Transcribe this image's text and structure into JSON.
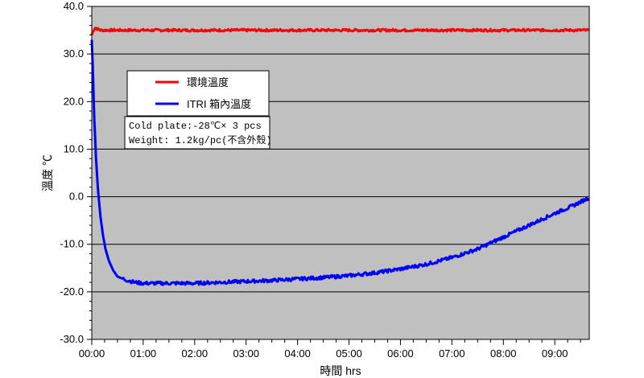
{
  "chart_data": {
    "type": "line",
    "title": "",
    "xlabel": "時間 hrs",
    "ylabel": "溫度 ℃",
    "ylim": [
      -30,
      40
    ],
    "xlim_hours": [
      0,
      9.67
    ],
    "grid": "horizontal",
    "background": "#c0c0c0",
    "x_ticks": [
      "00:00",
      "01:00",
      "02:00",
      "03:00",
      "04:00",
      "05:00",
      "06:00",
      "07:00",
      "08:00",
      "09:00"
    ],
    "y_ticks": [
      "40.0",
      "30.0",
      "20.0",
      "10.0",
      "0.0",
      "-10.0",
      "-20.0",
      "-30.0"
    ],
    "legend": {
      "placement": "upper-left"
    },
    "series": [
      {
        "name": "環境溫度",
        "color": "#ff0000",
        "x": [
          "00:00",
          "00:02",
          "00:04",
          "00:06",
          "00:10",
          "00:20",
          "00:30",
          "01:00",
          "02:00",
          "03:00",
          "04:00",
          "05:00",
          "06:00",
          "07:00",
          "08:00",
          "09:00",
          "09:40"
        ],
        "values": [
          34,
          35,
          35.5,
          35.3,
          35,
          35,
          35,
          35,
          35,
          35,
          35,
          35,
          35,
          35,
          35,
          35,
          35
        ]
      },
      {
        "name": "ITRI 箱內溫度",
        "color": "#0000ff",
        "x": [
          "00:00",
          "00:01",
          "00:02",
          "00:03",
          "00:05",
          "00:07",
          "00:10",
          "00:13",
          "00:16",
          "00:20",
          "00:25",
          "00:30",
          "00:40",
          "00:50",
          "01:00",
          "01:10",
          "01:20",
          "01:30",
          "02:00",
          "02:30",
          "03:00",
          "03:30",
          "04:00",
          "04:30",
          "05:00",
          "05:30",
          "06:00",
          "06:30",
          "07:00",
          "07:30",
          "08:00",
          "08:30",
          "09:00",
          "09:20",
          "09:40"
        ],
        "values": [
          33,
          28,
          22,
          16,
          8,
          2,
          -4,
          -8,
          -11,
          -13.5,
          -15.5,
          -16.8,
          -17.5,
          -18,
          -18.2,
          -18.2,
          -18.2,
          -18.2,
          -18.2,
          -18,
          -17.8,
          -17.6,
          -17.3,
          -17,
          -16.6,
          -16,
          -15.2,
          -14.2,
          -12.8,
          -11,
          -8.5,
          -6,
          -3.5,
          -2,
          -0.2
        ]
      }
    ],
    "annotation": {
      "line1": "Cold plate:-28℃× 3 pcs",
      "line2": "Weight: 1.2kg/pc(不含外殼)"
    }
  }
}
